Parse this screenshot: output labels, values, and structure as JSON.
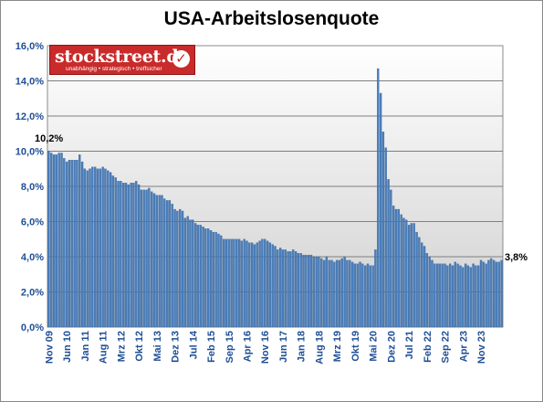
{
  "chart_data": {
    "type": "bar",
    "title": "USA-Arbeitslosenquote",
    "xlabel": "",
    "ylabel": "",
    "ylim": [
      0,
      16
    ],
    "y_ticks": [
      "0,0%",
      "2,0%",
      "4,0%",
      "6,0%",
      "8,0%",
      "10,0%",
      "12,0%",
      "14,0%",
      "16,0%"
    ],
    "x_tick_labels": [
      "Nov 09",
      "Jun 10",
      "Jan 11",
      "Aug 11",
      "Mrz 12",
      "Okt 12",
      "Mai 13",
      "Dez 13",
      "Jul 14",
      "Feb 15",
      "Sep 15",
      "Apr 16",
      "Nov 16",
      "Jun 17",
      "Jan 18",
      "Aug 18",
      "Mrz 19",
      "Okt 19",
      "Mai 20",
      "Dez 20",
      "Jul 21",
      "Feb 22",
      "Sep 22",
      "Apr 23",
      "Nov 23"
    ],
    "categories_start": "2009-11",
    "values": [
      10.0,
      9.9,
      9.8,
      9.8,
      9.9,
      9.9,
      9.6,
      9.4,
      9.5,
      9.5,
      9.5,
      9.5,
      9.8,
      9.4,
      9.0,
      8.9,
      9.0,
      9.1,
      9.1,
      9.0,
      9.0,
      9.1,
      9.0,
      8.9,
      8.8,
      8.6,
      8.5,
      8.3,
      8.3,
      8.2,
      8.2,
      8.1,
      8.2,
      8.2,
      8.3,
      8.1,
      7.8,
      7.8,
      7.8,
      7.9,
      7.7,
      7.6,
      7.5,
      7.5,
      7.5,
      7.3,
      7.2,
      7.2,
      7.0,
      6.7,
      6.6,
      6.7,
      6.6,
      6.2,
      6.3,
      6.1,
      6.1,
      5.9,
      5.8,
      5.8,
      5.7,
      5.6,
      5.6,
      5.5,
      5.4,
      5.4,
      5.3,
      5.2,
      5.0,
      5.0,
      5.0,
      5.0,
      5.0,
      5.0,
      5.0,
      4.9,
      5.0,
      4.9,
      4.8,
      4.8,
      4.7,
      4.8,
      4.9,
      5.0,
      5.0,
      4.9,
      4.8,
      4.7,
      4.6,
      4.4,
      4.5,
      4.4,
      4.4,
      4.3,
      4.3,
      4.4,
      4.3,
      4.2,
      4.2,
      4.1,
      4.1,
      4.1,
      4.1,
      4.0,
      4.0,
      4.0,
      3.9,
      3.8,
      4.0,
      3.8,
      3.8,
      3.7,
      3.8,
      3.8,
      3.9,
      4.0,
      3.8,
      3.8,
      3.7,
      3.6,
      3.6,
      3.7,
      3.6,
      3.5,
      3.6,
      3.5,
      3.5,
      4.4,
      14.7,
      13.3,
      11.1,
      10.2,
      8.4,
      7.8,
      6.9,
      6.7,
      6.7,
      6.4,
      6.2,
      6.1,
      5.8,
      5.9,
      5.9,
      5.4,
      5.1,
      4.8,
      4.6,
      4.2,
      4.0,
      3.8,
      3.6,
      3.6,
      3.6,
      3.6,
      3.6,
      3.5,
      3.6,
      3.5,
      3.7,
      3.6,
      3.5,
      3.4,
      3.6,
      3.5,
      3.4,
      3.6,
      3.5,
      3.5,
      3.8,
      3.7,
      3.6,
      3.8,
      3.9,
      3.8,
      3.7,
      3.7,
      3.8
    ],
    "annotations": [
      "10,2%",
      "3,8%"
    ],
    "grid": true,
    "legend": "none",
    "colors": {
      "bar": "#4a7ebb",
      "bar_edge": "#2f5a8f",
      "axis_label": "#1f4e96",
      "grid": "#7f7f7f"
    }
  },
  "logo": {
    "name": "stockstreet.de",
    "tagline": "unabhängig • strategisch • treffsicher",
    "check_glyph": "✓"
  }
}
